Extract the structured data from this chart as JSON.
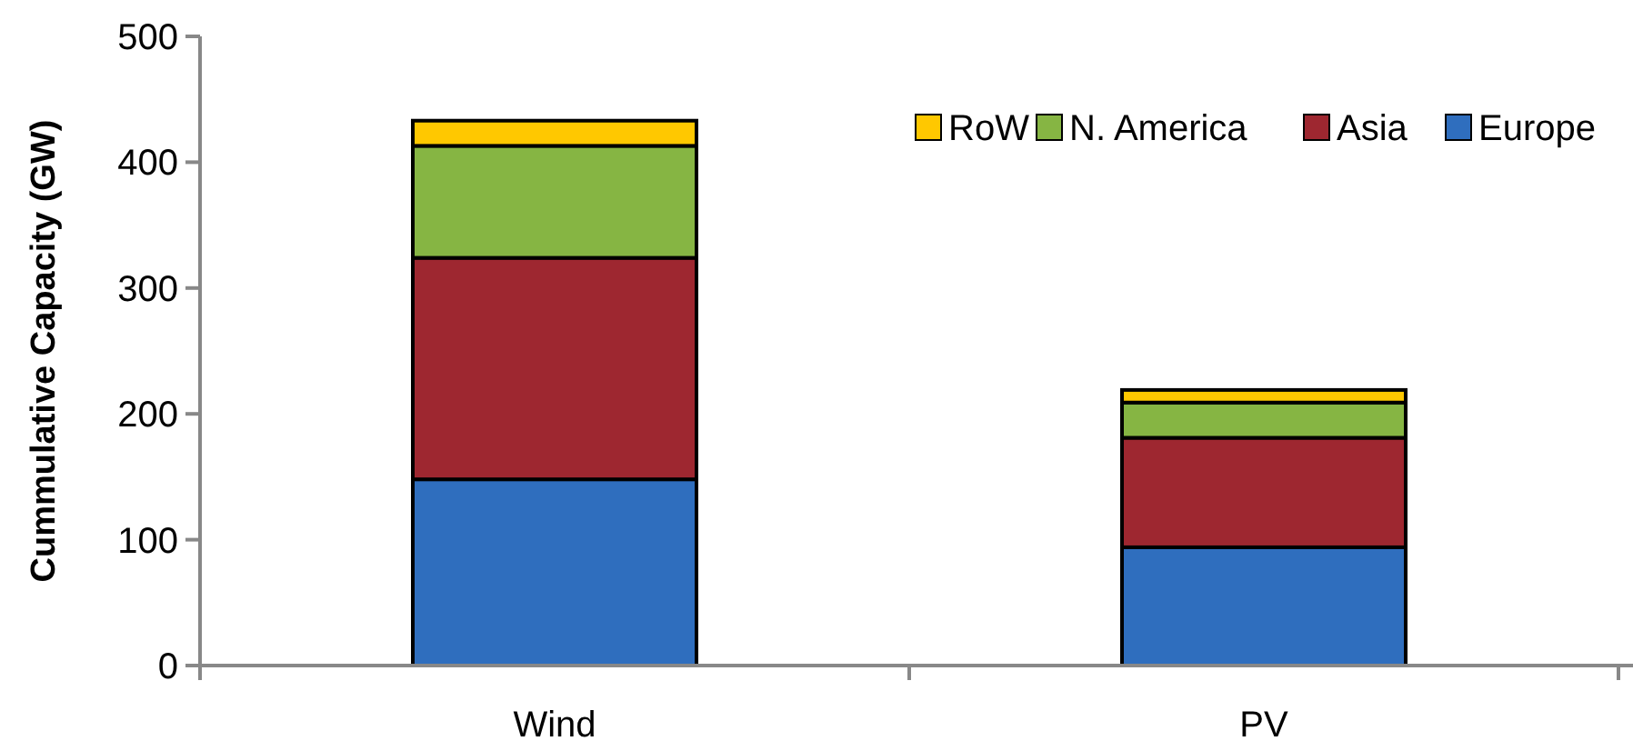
{
  "chart_data": {
    "type": "bar",
    "ylabel": "Cummulative Capacity (GW)",
    "categories": [
      "Wind",
      "PV"
    ],
    "stacked": true,
    "ylim": [
      0,
      500
    ],
    "yticks": [
      0,
      100,
      200,
      300,
      400,
      500
    ],
    "legend": "top right",
    "series": [
      {
        "name": "Europe",
        "color": "#2f6ebe",
        "values": [
          148,
          94
        ]
      },
      {
        "name": "Asia",
        "color": "#9e2730",
        "values": [
          176,
          87
        ]
      },
      {
        "name": "N. America",
        "color": "#86b543",
        "values": [
          89,
          28
        ]
      },
      {
        "name": "RoW",
        "color": "#ffc800",
        "values": [
          20,
          10
        ]
      }
    ]
  }
}
